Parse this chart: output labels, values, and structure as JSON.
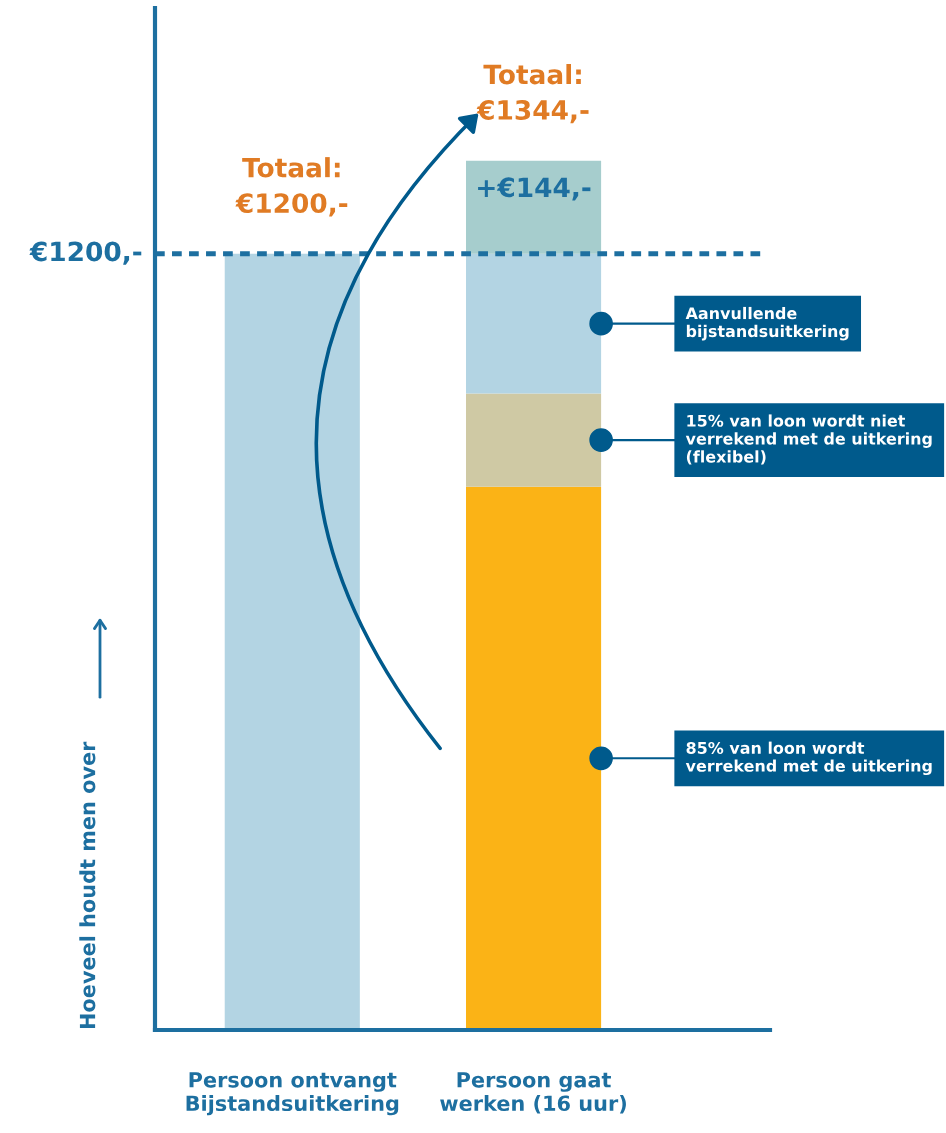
{
  "chart_data": {
    "type": "bar",
    "stacked": true,
    "categories": [
      "Persoon ontvangt\nBijstandsuitkering",
      "Persoon gaat\nwerken (16 uur)"
    ],
    "series": [
      {
        "name": "85% van loon wordt verrekend met de uitkering",
        "color": "#fbb316",
        "values": [
          null,
          840
        ]
      },
      {
        "name": "15% van loon wordt niet verrekend met de uitkering (flexibel)",
        "color": "#cfc9a4",
        "values": [
          null,
          144
        ]
      },
      {
        "name": "Aanvullende bijstandsuitkering",
        "color": "#b3d4e3",
        "values": [
          1200,
          216
        ]
      },
      {
        "color": "#a6cdcd",
        "values": [
          null,
          144
        ],
        "value_labels": [
          null,
          "+€144,-"
        ]
      }
    ],
    "totals": [
      "Totaal:\n€1200,-",
      "Totaal:\n€1344,-"
    ],
    "ylim": [
      0,
      1580
    ],
    "ylabel": "Hoeveel houdt men over",
    "ref_lines": [
      {
        "axis": "y",
        "value": 1200,
        "label": "€1200,-",
        "color": "#1d6fa0",
        "line_style": "dashed"
      }
    ],
    "tick_labels": "x",
    "grid": false,
    "legend": false
  }
}
